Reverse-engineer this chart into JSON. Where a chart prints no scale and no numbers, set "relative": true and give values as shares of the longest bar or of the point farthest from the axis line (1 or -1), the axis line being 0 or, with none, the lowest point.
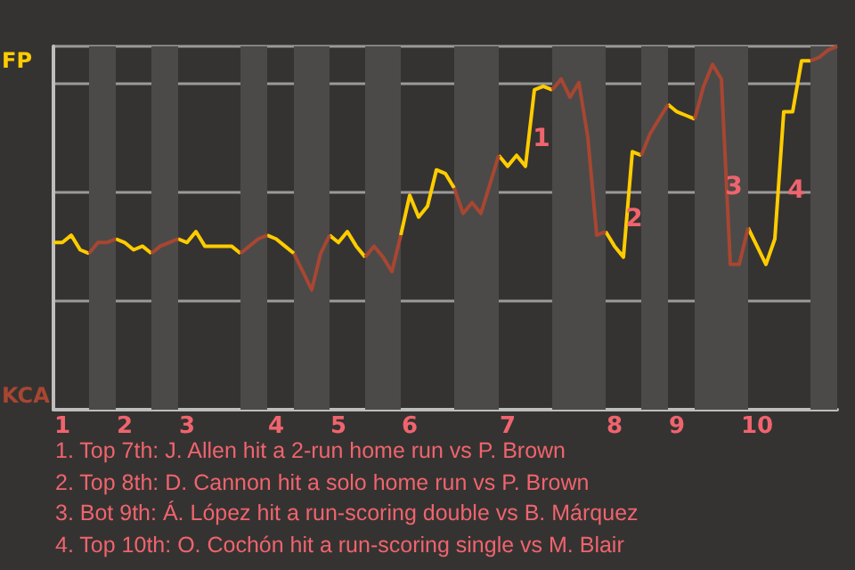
{
  "chart_data": {
    "type": "line",
    "relative": true,
    "categories": [
      null,
      "1",
      null,
      null,
      null,
      null,
      null,
      null,
      "2",
      null,
      null,
      null,
      null,
      null,
      null,
      "3",
      null,
      null,
      null,
      null,
      null,
      null,
      null,
      null,
      null,
      "4",
      null,
      null,
      null,
      null,
      null,
      null,
      "5",
      null,
      null,
      null,
      null,
      null,
      null,
      null,
      "6",
      null,
      null,
      null,
      null,
      null,
      null,
      null,
      null,
      null,
      null,
      "7",
      null,
      null,
      null,
      null,
      null,
      null,
      null,
      null,
      null,
      null,
      null,
      "8",
      null,
      null,
      null,
      null,
      null,
      null,
      "9",
      null,
      null,
      null,
      null,
      null,
      null,
      null,
      null,
      "10",
      null,
      null,
      null,
      null,
      null,
      null,
      null,
      null,
      null
    ],
    "grid": "y",
    "series": [
      {
        "color": "#ffcc00",
        "values": [
          0.46,
          0.46,
          0.48,
          0.44,
          0.43,
          null,
          null,
          0.47,
          0.46,
          0.44,
          0.45,
          0.43,
          null,
          null,
          0.47,
          0.46,
          0.49,
          0.45,
          0.45,
          0.45,
          0.45,
          0.43,
          null,
          null,
          0.48,
          0.47,
          0.45,
          0.43,
          null,
          null,
          null,
          0.48,
          0.46,
          0.49,
          0.45,
          0.42,
          null,
          null,
          null,
          0.48,
          0.59,
          0.53,
          0.56,
          0.66,
          0.65,
          0.61,
          null,
          null,
          null,
          null,
          0.7,
          0.67,
          0.7,
          0.67,
          0.88,
          0.89,
          0.88,
          null,
          null,
          null,
          null,
          null,
          0.49,
          0.45,
          0.42,
          0.71,
          0.7,
          null,
          null,
          0.84,
          0.82,
          0.81,
          0.8,
          null,
          null,
          null,
          null,
          null,
          0.5,
          0.45,
          0.4,
          0.47,
          0.82,
          0.82,
          0.96,
          0.96,
          null,
          null,
          null
        ]
      },
      {
        "color": "#a84632",
        "values": [
          null,
          null,
          null,
          null,
          0.43,
          0.46,
          0.46,
          0.47,
          null,
          null,
          null,
          0.43,
          0.45,
          0.46,
          0.47,
          null,
          null,
          null,
          null,
          null,
          null,
          0.43,
          0.45,
          0.47,
          0.48,
          null,
          null,
          0.43,
          0.38,
          0.33,
          0.43,
          0.48,
          null,
          null,
          null,
          0.42,
          0.45,
          0.42,
          0.38,
          0.48,
          null,
          null,
          null,
          null,
          null,
          0.61,
          0.54,
          0.57,
          0.54,
          0.62,
          0.7,
          null,
          null,
          null,
          null,
          null,
          0.88,
          0.91,
          0.86,
          0.9,
          0.75,
          0.48,
          0.49,
          null,
          null,
          null,
          0.7,
          0.76,
          0.8,
          0.84,
          null,
          null,
          0.8,
          0.89,
          0.95,
          0.91,
          0.4,
          0.4,
          0.5,
          null,
          null,
          null,
          null,
          null,
          null,
          0.96,
          0.97,
          0.99,
          1
        ]
      }
    ],
    "annotations": [
      "FP",
      "KCA",
      "1",
      "2",
      "3",
      "4",
      "1. Top 7th: J. Allen hit a 2-run home run vs P. Brown",
      "2. Top 8th: D. Cannon hit a solo home run vs P. Brown",
      "3. Bot 9th: Á. López hit a run-scoring double vs B. Márquez",
      "4. Top 10th: O. Cochón hit a run-scoring single vs M. Blair"
    ]
  }
}
